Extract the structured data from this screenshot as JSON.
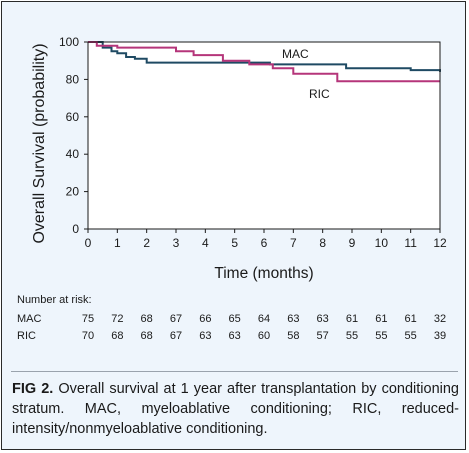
{
  "chart_data": {
    "type": "line",
    "step": true,
    "xlabel": "Time (months)",
    "ylabel": "Overall Survival (probability)",
    "xlim": [
      0,
      12
    ],
    "ylim": [
      0,
      100
    ],
    "x_ticks": [
      0,
      1,
      2,
      3,
      4,
      5,
      6,
      7,
      8,
      9,
      10,
      11,
      12
    ],
    "y_ticks": [
      0,
      20,
      40,
      60,
      80,
      100
    ],
    "grid": false,
    "legend": "inline labels",
    "series": [
      {
        "name": "MAC",
        "color": "#1f4a63",
        "x": [
          0,
          0.5,
          0.8,
          1.0,
          1.3,
          1.6,
          2.0,
          6.2,
          8.8,
          11.0,
          12
        ],
        "y": [
          100,
          97,
          95,
          94,
          92,
          91,
          89,
          88,
          86,
          85,
          84
        ]
      },
      {
        "name": "RIC",
        "color": "#b5357a",
        "x": [
          0,
          0.3,
          1.0,
          3.0,
          3.6,
          4.6,
          5.5,
          6.3,
          7.0,
          8.5,
          12
        ],
        "y": [
          100,
          98,
          97,
          95,
          93,
          90,
          88,
          86,
          83,
          79,
          79
        ]
      }
    ],
    "risk_table": {
      "title": "Number at risk:",
      "rows": [
        {
          "label": "MAC",
          "values": [
            75,
            72,
            68,
            67,
            66,
            65,
            64,
            63,
            63,
            61,
            61,
            61,
            32
          ]
        },
        {
          "label": "RIC",
          "values": [
            70,
            68,
            68,
            67,
            63,
            63,
            60,
            58,
            57,
            55,
            55,
            55,
            39
          ]
        }
      ]
    }
  },
  "caption": {
    "label": "FIG 2.",
    "text": "Overall survival at 1 year after transplantation by conditioning stratum. MAC, myeloablative conditioning; RIC, reduced-intensity/nonmyeloablative conditioning."
  },
  "colors": {
    "panel_background": "#eef5fc",
    "mac": "#1f4a63",
    "ric": "#b5357a"
  }
}
